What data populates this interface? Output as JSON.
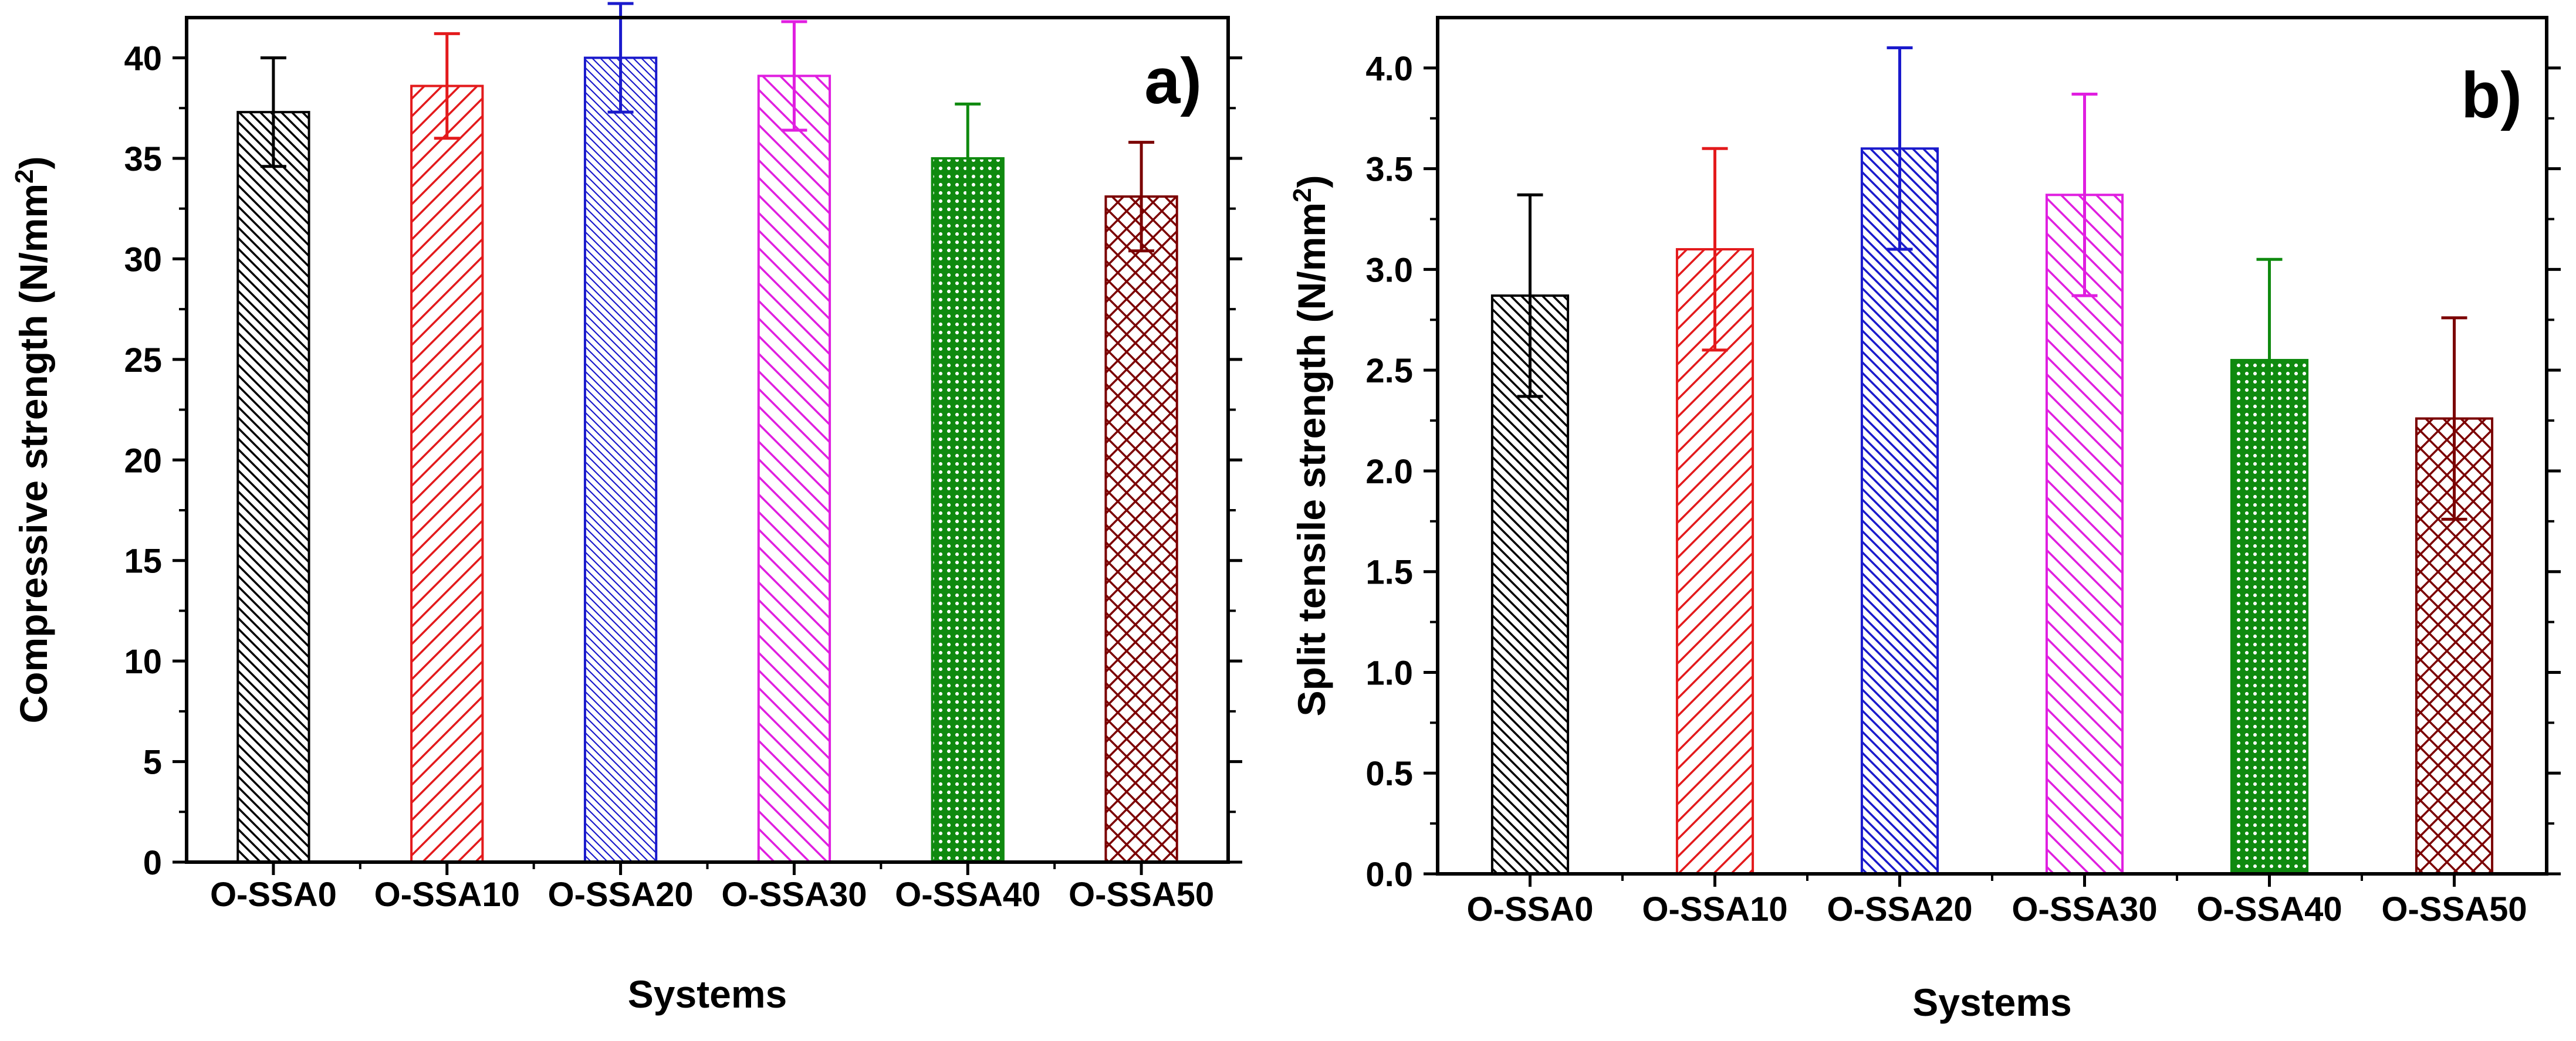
{
  "chart_data": [
    {
      "type": "bar",
      "panel_label": "a)",
      "categories": [
        "O-SSA0",
        "O-SSA10",
        "O-SSA20",
        "O-SSA30",
        "O-SSA40",
        "O-SSA50"
      ],
      "values": [
        37.3,
        38.6,
        40.0,
        39.1,
        35.0,
        33.1
      ],
      "errors": [
        2.7,
        2.6,
        2.7,
        2.7,
        2.7,
        2.7
      ],
      "colors": [
        "#000000",
        "#e31a1c",
        "#1a1acc",
        "#e01ee0",
        "#0f8a0f",
        "#7b0000"
      ],
      "patterns": [
        "diag-dense",
        "diag-right",
        "diag-dense-fine",
        "diag-left",
        "grid-fine",
        "crosshatch"
      ],
      "xlabel": "Systems",
      "ylabel": "Compressive strength (N/mm",
      "ylabel_superscript": "2",
      "ylabel_close": ")",
      "ylim": [
        0,
        42
      ],
      "yticks": [
        0,
        5,
        10,
        15,
        20,
        25,
        30,
        35,
        40
      ],
      "ytick_labels": [
        "0",
        "5",
        "10",
        "15",
        "20",
        "25",
        "30",
        "35",
        "40"
      ]
    },
    {
      "type": "bar",
      "panel_label": "b)",
      "categories": [
        "O-SSA0",
        "O-SSA10",
        "O-SSA20",
        "O-SSA30",
        "O-SSA40",
        "O-SSA50"
      ],
      "values": [
        2.87,
        3.1,
        3.6,
        3.37,
        2.55,
        2.26
      ],
      "errors": [
        0.5,
        0.5,
        0.5,
        0.5,
        0.5,
        0.5
      ],
      "colors": [
        "#000000",
        "#e31a1c",
        "#1a1acc",
        "#e01ee0",
        "#0f8a0f",
        "#7b0000"
      ],
      "patterns": [
        "diag-dense",
        "diag-right",
        "diag-dense",
        "diag-left",
        "grid-fine",
        "crosshatch"
      ],
      "xlabel": "Systems",
      "ylabel": "Split tensile strength (N/mm",
      "ylabel_superscript": "2",
      "ylabel_close": ")",
      "ylim": [
        0,
        4.25
      ],
      "yticks": [
        0,
        0.5,
        1.0,
        1.5,
        2.0,
        2.5,
        3.0,
        3.5,
        4.0
      ],
      "ytick_labels": [
        "0.0",
        "0.5",
        "1.0",
        "1.5",
        "2.0",
        "2.5",
        "3.0",
        "3.5",
        "4.0"
      ]
    }
  ]
}
